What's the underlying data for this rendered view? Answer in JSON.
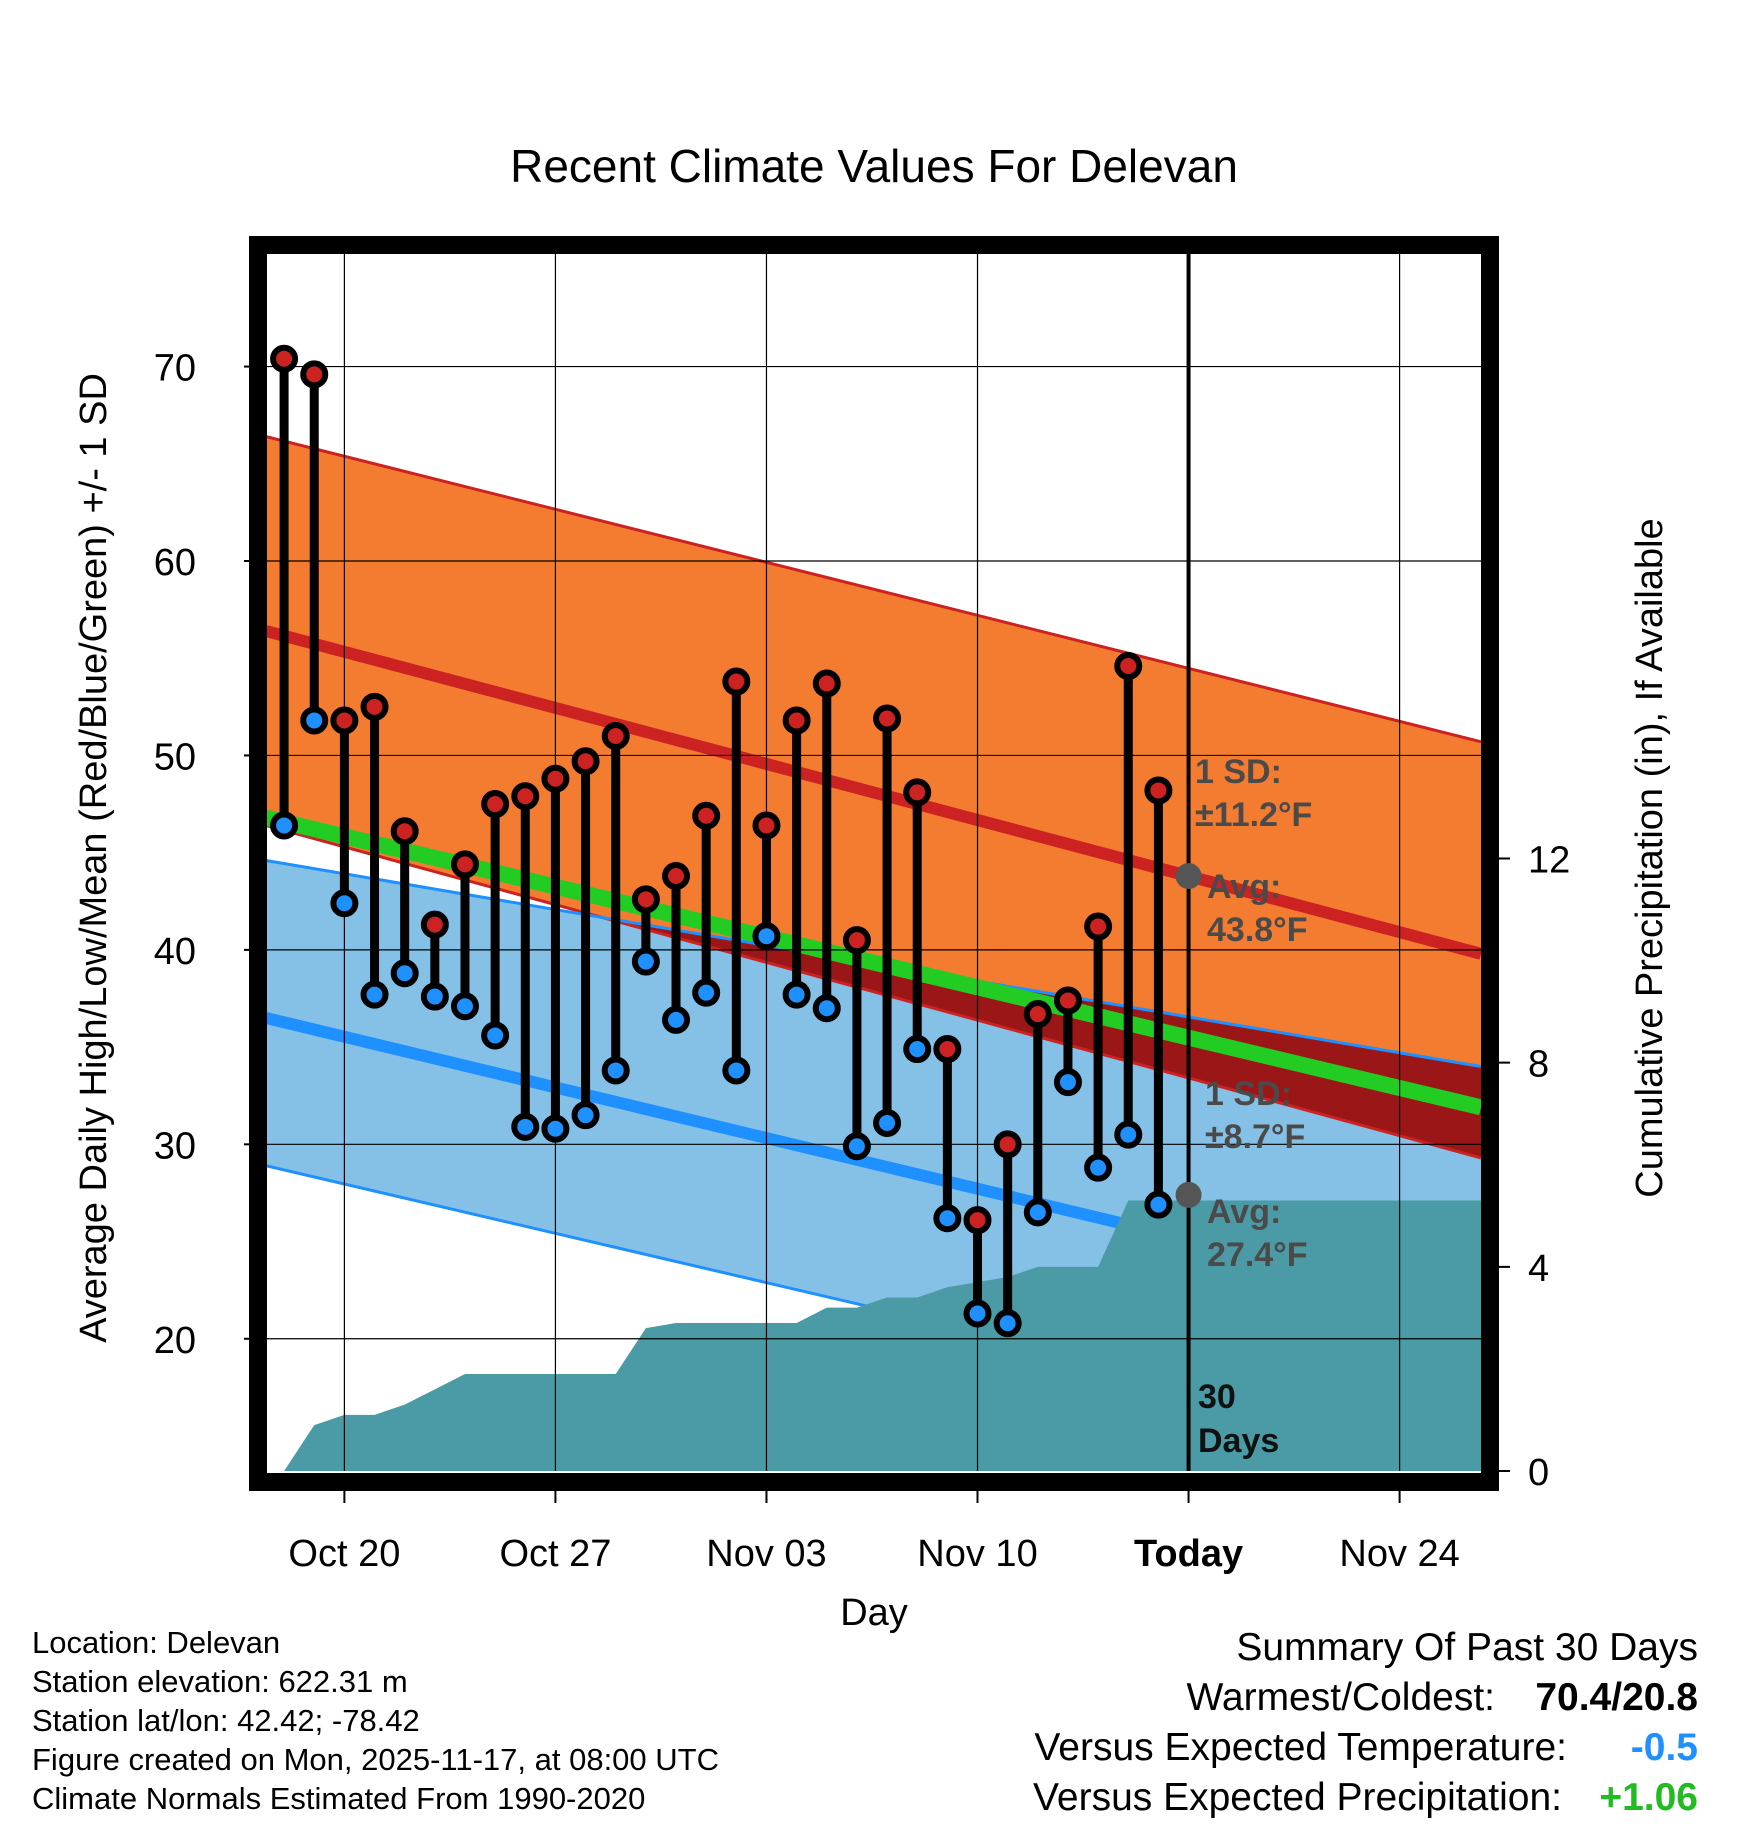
{
  "chart_data": {
    "type": "line",
    "title": "Recent Climate Values For Delevan",
    "xlabel": "Day",
    "ylabel": "Average Daily High/Low/Mean (Red/Blue/Green) +/- 1 SD",
    "y2label": "Cumulative Precipitation (in), If Available",
    "x_tick_labels": [
      "Oct 20",
      "Oct 27",
      "Nov 03",
      "Nov 10",
      "Today",
      "Nov 24"
    ],
    "x_tick_days": [
      0,
      7,
      14,
      21,
      28,
      35
    ],
    "x_range_days": [
      -2.6,
      37.7
    ],
    "y_ticks": [
      20,
      30,
      40,
      50,
      60,
      70
    ],
    "ylim": [
      13.2,
      76.2
    ],
    "y2_ticks": [
      0,
      4,
      8,
      12
    ],
    "y2lim": [
      0,
      24
    ],
    "days": [
      -2,
      -1,
      0,
      1,
      2,
      3,
      4,
      5,
      6,
      7,
      8,
      9,
      10,
      11,
      12,
      13,
      14,
      15,
      16,
      17,
      18,
      19,
      20,
      21,
      22,
      23,
      24,
      25,
      26,
      27
    ],
    "series": [
      {
        "name": "Daily High",
        "color": "#cc2222",
        "values": [
          70.4,
          69.6,
          51.8,
          52.5,
          46.1,
          41.3,
          44.4,
          47.5,
          47.9,
          48.8,
          49.7,
          51.0,
          42.6,
          43.8,
          46.9,
          53.8,
          46.4,
          51.8,
          53.7,
          40.5,
          51.9,
          48.1,
          34.9,
          26.1,
          30.0,
          36.7,
          37.4,
          41.2,
          54.6,
          48.2
        ]
      },
      {
        "name": "Daily Low",
        "color": "#1e90ff",
        "values": [
          46.4,
          51.8,
          42.4,
          37.7,
          38.8,
          37.6,
          37.1,
          35.6,
          30.9,
          30.8,
          31.5,
          33.8,
          39.4,
          36.4,
          37.8,
          33.8,
          40.7,
          37.7,
          37.0,
          29.9,
          31.1,
          34.9,
          26.2,
          21.3,
          20.8,
          26.5,
          33.2,
          28.8,
          30.5,
          26.9
        ]
      }
    ],
    "normals": {
      "days": [
        -2.6,
        37.7
      ],
      "high_mean": [
        56.4,
        39.8
      ],
      "high_upper": [
        66.4,
        50.7
      ],
      "high_lower": [
        46.4,
        29.3
      ],
      "low_mean": [
        36.5,
        21.5
      ],
      "low_upper": [
        44.6,
        34.0
      ],
      "low_lower": [
        28.9,
        14.3
      ],
      "avg_mean": [
        46.8,
        31.9
      ]
    },
    "precipitation": {
      "days": [
        -2,
        -1,
        0,
        1,
        2,
        3,
        4,
        5,
        6,
        7,
        8,
        9,
        10,
        11,
        12,
        13,
        14,
        15,
        16,
        17,
        18,
        19,
        20,
        21,
        22,
        23,
        24,
        25,
        26,
        27,
        37.7
      ],
      "values": [
        0.0,
        0.9,
        1.1,
        1.1,
        1.3,
        1.6,
        1.9,
        1.9,
        1.9,
        1.9,
        1.9,
        1.9,
        2.8,
        2.9,
        2.9,
        2.9,
        2.9,
        2.9,
        3.2,
        3.2,
        3.4,
        3.4,
        3.6,
        3.7,
        3.8,
        4.0,
        4.0,
        4.0,
        5.3,
        5.3,
        5.3
      ],
      "color": "#4a9ba5"
    },
    "annotations": {
      "high_sd": "1 SD:",
      "high_sd_value": "±11.2°F",
      "high_avg": "Avg:",
      "high_avg_value": "43.8°F",
      "low_sd": "1 SD:",
      "low_sd_value": "±8.7°F",
      "low_avg": "Avg:",
      "low_avg_value": "27.4°F",
      "today_high_normal": 43.8,
      "today_low_normal": 27.4,
      "window_count": "30",
      "window_unit": "Days"
    }
  },
  "footer": {
    "location": "Location: Delevan",
    "elevation": "Station elevation: 622.31 m",
    "latlon": "Station lat/lon: 42.42; -78.42",
    "created": "Figure created on Mon, 2025-11-17, at 08:00 UTC",
    "normals": "Climate Normals Estimated From 1990-2020"
  },
  "summary": {
    "title": "Summary Of Past 30 Days",
    "warmest_label": "Warmest/Coldest:",
    "warmest_value": "70.4/20.8",
    "temp_label": "Versus Expected Temperature:",
    "temp_value": "-0.5",
    "temp_color": "#1e90ff",
    "precip_label": "Versus Expected Precipitation:",
    "precip_value": "+1.06",
    "precip_color": "#22bb22"
  }
}
